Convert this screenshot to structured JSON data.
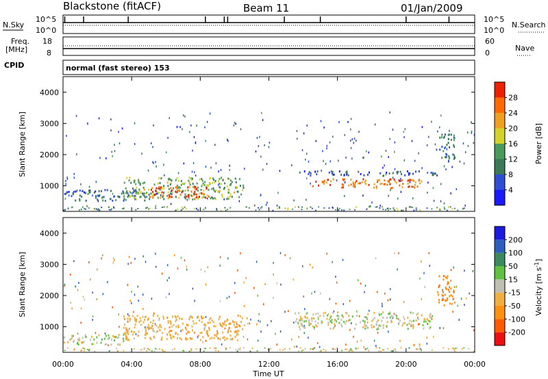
{
  "header": {
    "station": "Blackstone (fitACF)",
    "beam": "Beam 11",
    "date": "01/Jan/2009"
  },
  "top_panel": {
    "left_label": "N.Sky",
    "left_ticks": [
      "10^5",
      "10^0"
    ],
    "right_label": "N.Search",
    "right_ticks": [
      "10^5",
      "10^0"
    ]
  },
  "freq_panel": {
    "left_label_1": "Freq.",
    "left_label_2": "[MHz]",
    "left_ticks": [
      "18",
      "8"
    ],
    "right_label": "Nave",
    "right_ticks": [
      "60",
      "0"
    ]
  },
  "cpid": {
    "label": "CPID",
    "value": "normal (fast stereo) 153"
  },
  "colors": {
    "power": [
      "#1a1aff",
      "#2d4fd6",
      "#3a7a58",
      "#4a9a5a",
      "#d4d22a",
      "#f0a020",
      "#ff6a00",
      "#ee2000"
    ],
    "velocity": [
      "#ee1010",
      "#ff5a00",
      "#ff9010",
      "#f0b040",
      "#c0c0b0",
      "#60c040",
      "#3a8a60",
      "#2d5fbf",
      "#1a1ae0"
    ]
  },
  "chart_data": [
    {
      "type": "heatmap",
      "ylabel": "Slant Range [km]",
      "xlabel": "Time UT",
      "xlim": [
        "00:00",
        "24:00"
      ],
      "x_ticks": [
        "00:00",
        "04:00",
        "08:00",
        "12:00",
        "16:00",
        "20:00",
        "00:00"
      ],
      "ylim": [
        180,
        4500
      ],
      "y_ticks": [
        1000,
        2000,
        3000,
        4000
      ],
      "colorbar": {
        "label": "Power [dB]",
        "ticks": [
          "4",
          "8",
          "12",
          "16",
          "20",
          "24",
          "28"
        ],
        "range": [
          0,
          30
        ]
      },
      "features": [
        {
          "t0": 0.0,
          "t1": 5.0,
          "r0": 550,
          "r1": 900,
          "value": 8
        },
        {
          "t0": 3.5,
          "t1": 10.5,
          "r0": 600,
          "r1": 1300,
          "value": 14
        },
        {
          "t0": 5.0,
          "t1": 8.5,
          "r0": 650,
          "r1": 1000,
          "value": 26
        },
        {
          "t0": 13.7,
          "t1": 21.8,
          "r0": 1350,
          "r1": 1500,
          "value": 6
        },
        {
          "t0": 14.5,
          "t1": 21.0,
          "r0": 950,
          "r1": 1250,
          "value": 24
        },
        {
          "t0": 21.8,
          "t1": 22.8,
          "r0": 1800,
          "r1": 2700,
          "value": 10
        }
      ]
    },
    {
      "type": "heatmap",
      "ylabel": "Slant Range [km]",
      "xlabel": "Time UT",
      "xlim": [
        "00:00",
        "24:00"
      ],
      "x_ticks": [
        "00:00",
        "04:00",
        "08:00",
        "12:00",
        "16:00",
        "20:00",
        "00:00"
      ],
      "ylim": [
        180,
        4500
      ],
      "y_ticks": [
        1000,
        2000,
        3000,
        4000
      ],
      "colorbar": {
        "label": "Velocity [m s^-1]",
        "ticks": [
          "-200",
          "-100",
          "-50",
          "-15",
          "15",
          "50",
          "100",
          "200"
        ],
        "range": [
          -250,
          250
        ]
      },
      "features": [
        {
          "t0": 0.0,
          "t1": 3.5,
          "r0": 450,
          "r1": 800,
          "value": 0
        },
        {
          "t0": 3.5,
          "t1": 10.5,
          "r0": 600,
          "r1": 1400,
          "value": -40
        },
        {
          "t0": 13.5,
          "t1": 21.5,
          "r0": 950,
          "r1": 1500,
          "value": 0
        },
        {
          "t0": 21.8,
          "t1": 22.8,
          "r0": 1700,
          "r1": 2700,
          "value": -80
        }
      ]
    }
  ]
}
